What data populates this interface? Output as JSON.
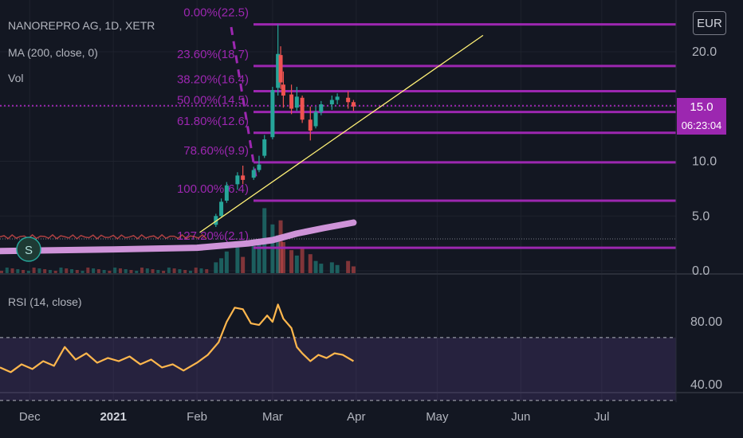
{
  "header": {
    "symbol_line": "NANOREPRO AG, 1D, XETR",
    "ma_line": "MA (200, close, 0)",
    "vol_line": "Vol",
    "rsi_line": "RSI (14, close)",
    "currency": "EUR",
    "last_price": "15.0",
    "countdown": "06:23:04",
    "marker_letter": "S"
  },
  "colors": {
    "background": "#131722",
    "fib": "#9c27b0",
    "up": "#26a69a",
    "down": "#ef5350",
    "ma": "#ce93d8",
    "trendline": "#fff176",
    "rsi": "#ffb74d",
    "grid": "#1e222d"
  },
  "chart_data": [
    {
      "type": "candlestick",
      "ylim": [
        0,
        22.8
      ],
      "price_axis_ticks": [
        "20.0",
        "15.0",
        "10.0",
        "5.0",
        "0.0"
      ],
      "price_tick_values": [
        20,
        15,
        10,
        5,
        0
      ],
      "time_axis_ticks": [
        "Dec",
        "2021",
        "Feb",
        "Mar",
        "Apr",
        "May",
        "Jun",
        "Jul"
      ],
      "time_tick_dates": [
        "2020-12-01",
        "2021-01-01",
        "2021-02-01",
        "2021-03-01",
        "2021-04-01",
        "2021-05-01",
        "2021-06-01",
        "2021-07-01"
      ],
      "x_start": "2020-11-20",
      "fib_levels": [
        {
          "label": "0.00%(22.5)",
          "price": 22.5
        },
        {
          "label": "23.60%(18.7)",
          "price": 18.7
        },
        {
          "label": "38.20%(16.4)",
          "price": 16.4
        },
        {
          "label": "50.00%(14.5)",
          "price": 14.5
        },
        {
          "label": "61.80%(12.6)",
          "price": 12.6
        },
        {
          "label": "78.60%(9.9)",
          "price": 9.9
        },
        {
          "label": "100.00%(6.4)",
          "price": 6.4
        },
        {
          "label": "127.20%(2.1)",
          "price": 2.1
        }
      ],
      "last_price": 15.0,
      "ma200_points": [
        [
          "2020-11-20",
          1.8
        ],
        [
          "2021-01-01",
          1.95
        ],
        [
          "2021-02-01",
          2.1
        ],
        [
          "2021-02-20",
          2.5
        ],
        [
          "2021-03-01",
          2.8
        ],
        [
          "2021-03-10",
          3.4
        ],
        [
          "2021-03-20",
          3.9
        ],
        [
          "2021-03-31",
          4.4
        ]
      ],
      "trendline_points": [
        [
          "2021-02-02",
          3.5
        ],
        [
          "2021-05-18",
          21.5
        ]
      ],
      "candles": [
        {
          "date": "2021-02-08",
          "o": 4.2,
          "h": 5.2,
          "l": 4.0,
          "c": 5.0
        },
        {
          "date": "2021-02-10",
          "o": 5.0,
          "h": 6.6,
          "l": 4.9,
          "c": 6.3
        },
        {
          "date": "2021-02-12",
          "o": 6.4,
          "h": 8.1,
          "l": 6.2,
          "c": 7.8
        },
        {
          "date": "2021-02-16",
          "o": 7.9,
          "h": 9.0,
          "l": 7.4,
          "c": 8.7
        },
        {
          "date": "2021-02-18",
          "o": 8.7,
          "h": 9.6,
          "l": 7.9,
          "c": 8.3
        },
        {
          "date": "2021-02-22",
          "o": 8.5,
          "h": 9.5,
          "l": 8.3,
          "c": 9.2
        },
        {
          "date": "2021-02-24",
          "o": 9.2,
          "h": 10.5,
          "l": 9.0,
          "c": 9.7
        },
        {
          "date": "2021-02-26",
          "o": 10.5,
          "h": 12.4,
          "l": 10.3,
          "c": 12.0
        },
        {
          "date": "2021-03-01",
          "o": 12.2,
          "h": 16.8,
          "l": 12.0,
          "c": 16.5
        },
        {
          "date": "2021-03-03",
          "o": 16.7,
          "h": 22.5,
          "l": 16.0,
          "c": 19.8
        },
        {
          "date": "2021-03-04",
          "o": 19.7,
          "h": 20.5,
          "l": 16.6,
          "c": 17.2
        },
        {
          "date": "2021-03-05",
          "o": 17.0,
          "h": 18.2,
          "l": 14.9,
          "c": 16.0
        },
        {
          "date": "2021-03-08",
          "o": 16.1,
          "h": 17.0,
          "l": 14.3,
          "c": 14.8
        },
        {
          "date": "2021-03-10",
          "o": 14.9,
          "h": 16.8,
          "l": 14.6,
          "c": 15.9
        },
        {
          "date": "2021-03-12",
          "o": 15.8,
          "h": 16.0,
          "l": 13.5,
          "c": 13.8
        },
        {
          "date": "2021-03-15",
          "o": 13.8,
          "h": 15.0,
          "l": 11.9,
          "c": 12.8
        },
        {
          "date": "2021-03-17",
          "o": 13.2,
          "h": 15.0,
          "l": 13.0,
          "c": 14.5
        },
        {
          "date": "2021-03-19",
          "o": 14.5,
          "h": 15.5,
          "l": 14.2,
          "c": 15.2
        },
        {
          "date": "2021-03-23",
          "o": 15.2,
          "h": 16.0,
          "l": 14.7,
          "c": 15.6
        },
        {
          "date": "2021-03-25",
          "o": 15.6,
          "h": 16.2,
          "l": 15.2,
          "c": 15.9
        },
        {
          "date": "2021-03-29",
          "o": 15.8,
          "h": 16.4,
          "l": 14.8,
          "c": 15.4
        },
        {
          "date": "2021-03-31",
          "o": 15.4,
          "h": 15.6,
          "l": 14.6,
          "c": 15.0
        }
      ],
      "volume": [
        {
          "date": "2021-02-08",
          "v": 0.8,
          "up": true
        },
        {
          "date": "2021-02-10",
          "v": 1.1,
          "up": true
        },
        {
          "date": "2021-02-12",
          "v": 1.6,
          "up": true
        },
        {
          "date": "2021-02-16",
          "v": 1.9,
          "up": true
        },
        {
          "date": "2021-02-18",
          "v": 1.2,
          "up": false
        },
        {
          "date": "2021-02-22",
          "v": 2.0,
          "up": true
        },
        {
          "date": "2021-02-24",
          "v": 2.5,
          "up": true
        },
        {
          "date": "2021-02-26",
          "v": 4.8,
          "up": true
        },
        {
          "date": "2021-03-01",
          "v": 3.6,
          "up": true
        },
        {
          "date": "2021-03-03",
          "v": 2.8,
          "up": true
        },
        {
          "date": "2021-03-04",
          "v": 3.9,
          "up": false
        },
        {
          "date": "2021-03-05",
          "v": 2.3,
          "up": false
        },
        {
          "date": "2021-03-08",
          "v": 1.7,
          "up": false
        },
        {
          "date": "2021-03-10",
          "v": 1.3,
          "up": true
        },
        {
          "date": "2021-03-12",
          "v": 1.8,
          "up": false
        },
        {
          "date": "2021-03-15",
          "v": 1.4,
          "up": false
        },
        {
          "date": "2021-03-17",
          "v": 0.9,
          "up": true
        },
        {
          "date": "2021-03-19",
          "v": 0.7,
          "up": true
        },
        {
          "date": "2021-03-23",
          "v": 0.8,
          "up": true
        },
        {
          "date": "2021-03-25",
          "v": 0.6,
          "up": true
        },
        {
          "date": "2021-03-29",
          "v": 0.9,
          "up": false
        },
        {
          "date": "2021-03-31",
          "v": 0.5,
          "up": false
        }
      ]
    },
    {
      "type": "line",
      "name": "RSI (14, close)",
      "ylim": [
        25,
        100
      ],
      "axis_ticks": [
        "80.00",
        "40.00"
      ],
      "axis_tick_values": [
        80,
        40
      ],
      "band": [
        70,
        30
      ],
      "points": [
        [
          "2020-11-20",
          51
        ],
        [
          "2020-11-24",
          48
        ],
        [
          "2020-11-28",
          53
        ],
        [
          "2020-12-02",
          50
        ],
        [
          "2020-12-06",
          55
        ],
        [
          "2020-12-10",
          52
        ],
        [
          "2020-12-14",
          64
        ],
        [
          "2020-12-18",
          56
        ],
        [
          "2020-12-22",
          60
        ],
        [
          "2020-12-26",
          54
        ],
        [
          "2020-12-30",
          57
        ],
        [
          "2021-01-03",
          55
        ],
        [
          "2021-01-07",
          58
        ],
        [
          "2021-01-11",
          53
        ],
        [
          "2021-01-15",
          56
        ],
        [
          "2021-01-19",
          51
        ],
        [
          "2021-01-23",
          53
        ],
        [
          "2021-01-27",
          49
        ],
        [
          "2021-02-01",
          54
        ],
        [
          "2021-02-05",
          59
        ],
        [
          "2021-02-09",
          67
        ],
        [
          "2021-02-12",
          80
        ],
        [
          "2021-02-15",
          89
        ],
        [
          "2021-02-18",
          88
        ],
        [
          "2021-02-21",
          79
        ],
        [
          "2021-02-24",
          78
        ],
        [
          "2021-02-27",
          84
        ],
        [
          "2021-03-01",
          80
        ],
        [
          "2021-03-03",
          91
        ],
        [
          "2021-03-05",
          82
        ],
        [
          "2021-03-08",
          76
        ],
        [
          "2021-03-10",
          64
        ],
        [
          "2021-03-12",
          60
        ],
        [
          "2021-03-15",
          55
        ],
        [
          "2021-03-18",
          59
        ],
        [
          "2021-03-21",
          57
        ],
        [
          "2021-03-24",
          60
        ],
        [
          "2021-03-27",
          59
        ],
        [
          "2021-03-31",
          55
        ]
      ]
    }
  ]
}
